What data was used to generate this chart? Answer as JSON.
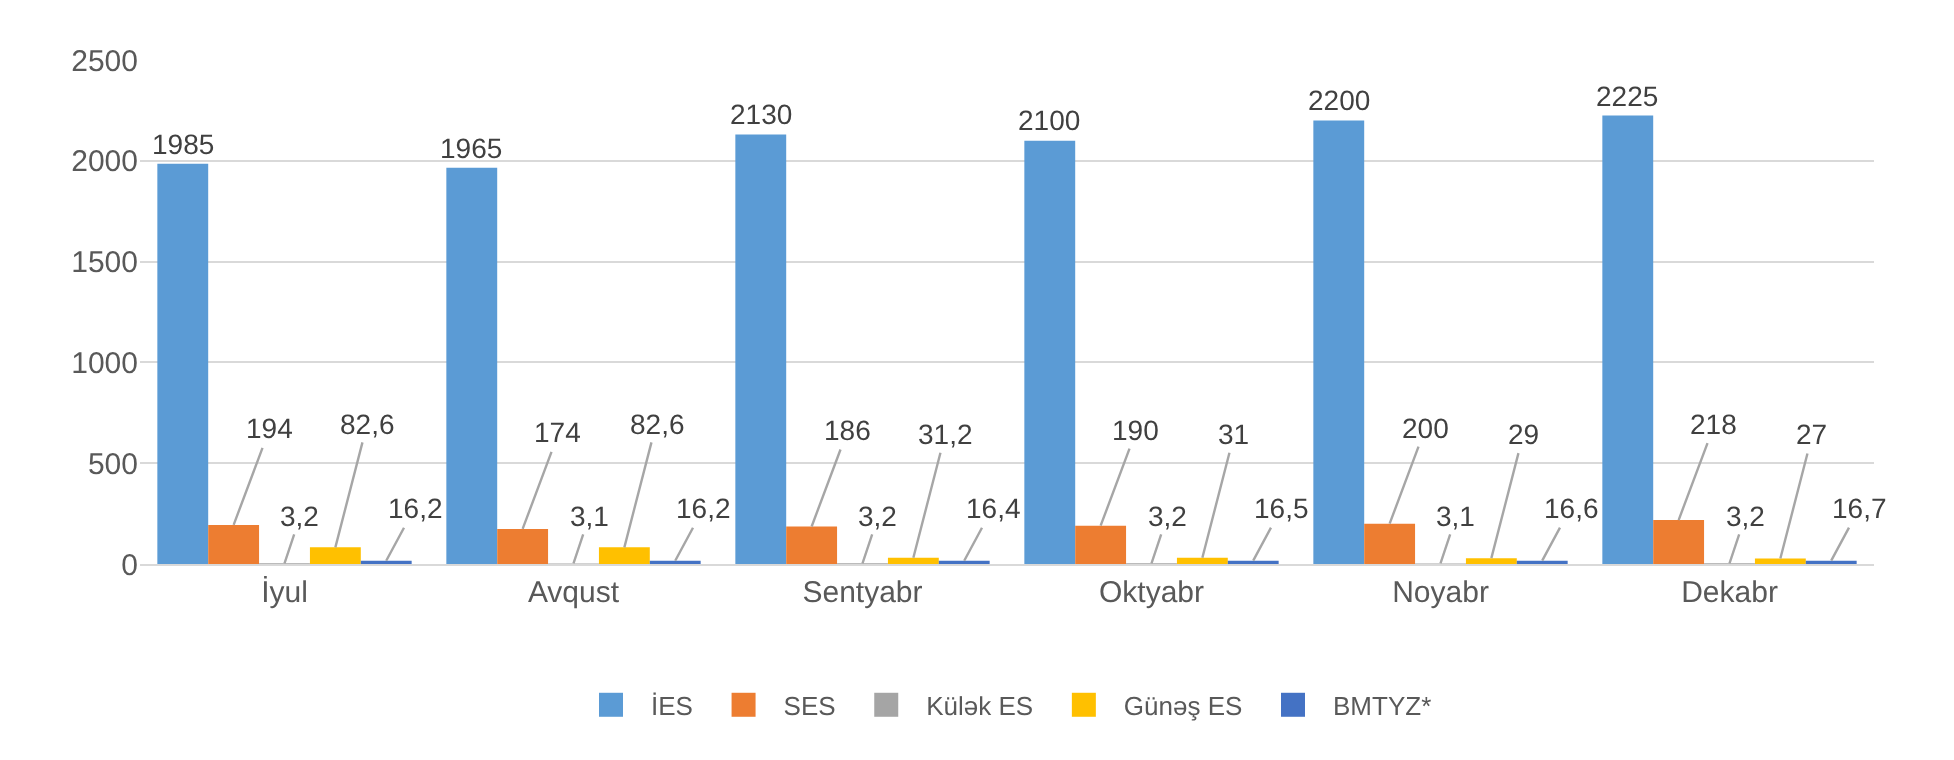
{
  "chart_data": {
    "type": "bar",
    "categories": [
      "İyul",
      "Avqust",
      "Sentyabr",
      "Oktyabr",
      "Noyabr",
      "Dekabr"
    ],
    "series": [
      {
        "name": "İES",
        "color": "#5b9bd5",
        "values": [
          1985,
          1965,
          2130,
          2100,
          2200,
          2225
        ],
        "value_labels": [
          "1985",
          "1965",
          "2130",
          "2100",
          "2200",
          "2225"
        ]
      },
      {
        "name": "SES",
        "color": "#ed7d31",
        "values": [
          194,
          174,
          186,
          190,
          200,
          218
        ],
        "value_labels": [
          "194",
          "174",
          "186",
          "190",
          "200",
          "218"
        ]
      },
      {
        "name": "Külək ES",
        "color": "#a5a5a5",
        "values": [
          3.2,
          3.1,
          3.2,
          3.2,
          3.1,
          3.2
        ],
        "value_labels": [
          "3,2",
          "3,1",
          "3,2",
          "3,2",
          "3,1",
          "3,2"
        ]
      },
      {
        "name": "Günəş ES",
        "color": "#ffc000",
        "values": [
          82.6,
          82.6,
          31.2,
          31,
          29,
          27
        ],
        "value_labels": [
          "82,6",
          "82,6",
          "31,2",
          "31",
          "29",
          "27"
        ]
      },
      {
        "name": "BMTYZ*",
        "color": "#4472c4",
        "values": [
          16.2,
          16.2,
          16.4,
          16.5,
          16.6,
          16.7
        ],
        "value_labels": [
          "16,2",
          "16,2",
          "16,4",
          "16,5",
          "16,6",
          "16,7"
        ]
      }
    ],
    "ylim": [
      0,
      2500
    ],
    "yticks": [
      0,
      500,
      1000,
      1500,
      2000,
      2500
    ],
    "grid": "y",
    "legend": "bottom"
  }
}
